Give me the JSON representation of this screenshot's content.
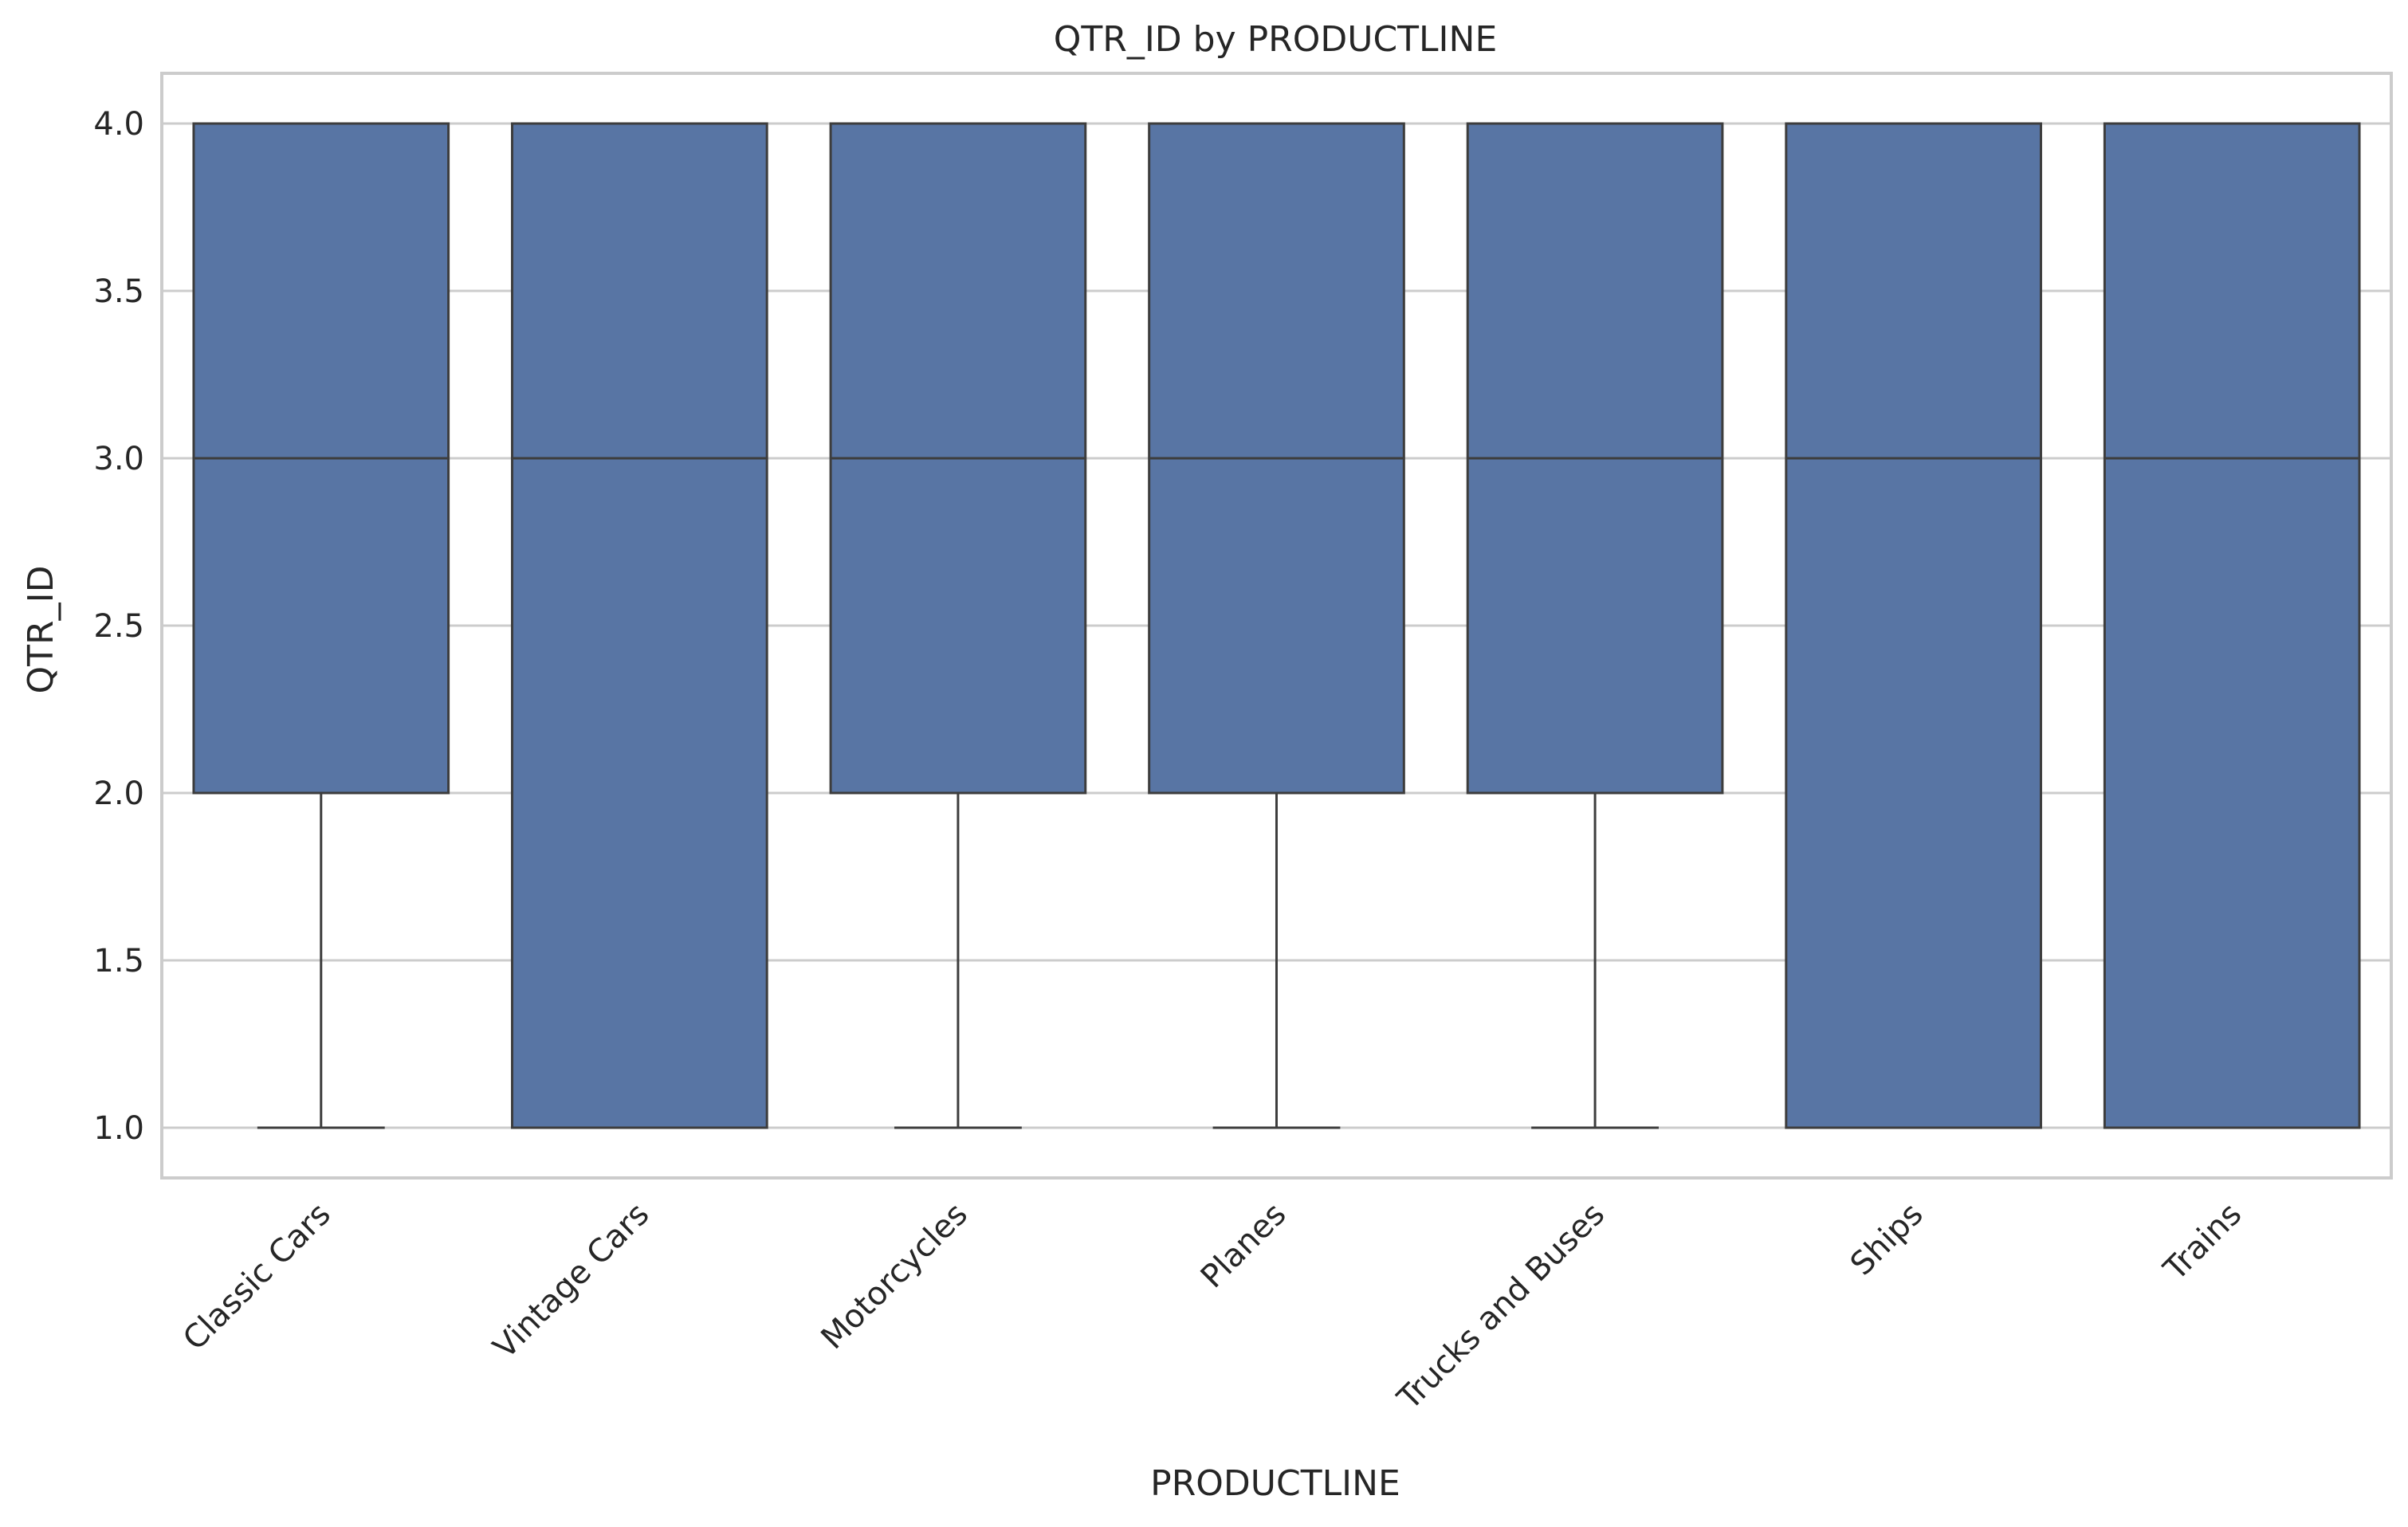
{
  "chart_data": {
    "type": "box",
    "title": "QTR_ID by PRODUCTLINE",
    "xlabel": "PRODUCTLINE",
    "ylabel": "QTR_ID",
    "ylim": [
      0.85,
      4.15
    ],
    "yticks": [
      "1.0",
      "1.5",
      "2.0",
      "2.5",
      "3.0",
      "3.5",
      "4.0"
    ],
    "grid": true,
    "categories": [
      "Classic Cars",
      "Vintage Cars",
      "Motorcycles",
      "Planes",
      "Trucks and Buses",
      "Ships",
      "Trains"
    ],
    "boxes": [
      {
        "category": "Classic Cars",
        "whisker_low": 1,
        "q1": 2,
        "median": 3,
        "q3": 4,
        "whisker_high": 4
      },
      {
        "category": "Vintage Cars",
        "whisker_low": 1,
        "q1": 1,
        "median": 3,
        "q3": 4,
        "whisker_high": 4
      },
      {
        "category": "Motorcycles",
        "whisker_low": 1,
        "q1": 2,
        "median": 3,
        "q3": 4,
        "whisker_high": 4
      },
      {
        "category": "Planes",
        "whisker_low": 1,
        "q1": 2,
        "median": 3,
        "q3": 4,
        "whisker_high": 4
      },
      {
        "category": "Trucks and Buses",
        "whisker_low": 1,
        "q1": 2,
        "median": 3,
        "q3": 4,
        "whisker_high": 4
      },
      {
        "category": "Ships",
        "whisker_low": 1,
        "q1": 1,
        "median": 3,
        "q3": 4,
        "whisker_high": 4
      },
      {
        "category": "Trains",
        "whisker_low": 1,
        "q1": 1,
        "median": 3,
        "q3": 4,
        "whisker_high": 4
      }
    ],
    "colors": {
      "box_fill": "#5875a4",
      "box_edge": "#3d3d3d",
      "grid": "#cccccc",
      "frame": "#cccccc",
      "text": "#262626"
    }
  }
}
